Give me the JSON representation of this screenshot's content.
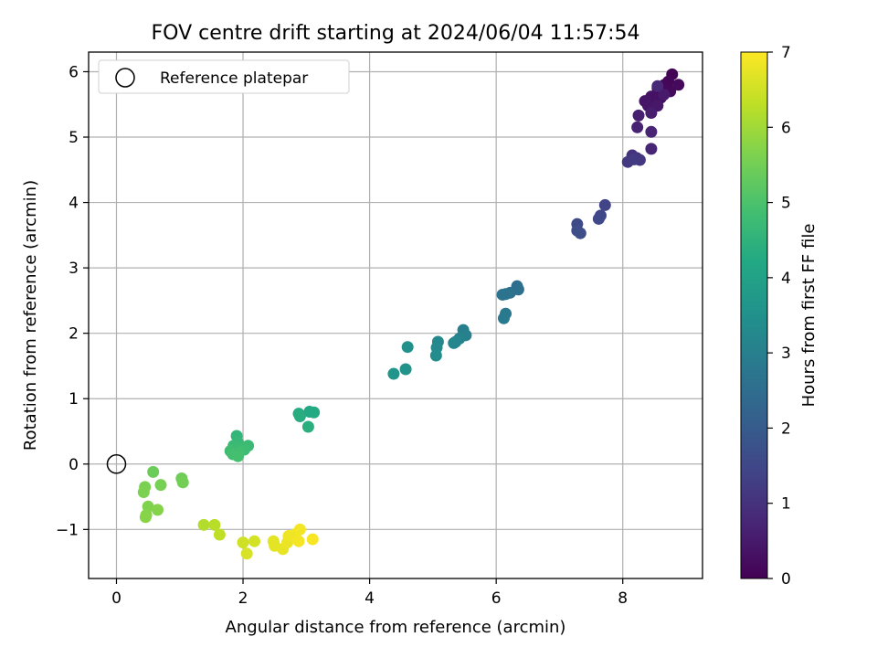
{
  "chart_data": {
    "type": "scatter",
    "title": "FOV centre drift starting at 2024/06/04 11:57:54",
    "xlabel": "Angular distance from reference (arcmin)",
    "ylabel": "Rotation from reference (arcmin)",
    "xlim": [
      -0.44,
      9.26
    ],
    "ylim": [
      -1.75,
      6.3
    ],
    "xticks": [
      0,
      2,
      4,
      6,
      8
    ],
    "xtick_labels": [
      "0",
      "2",
      "4",
      "6",
      "8"
    ],
    "yticks": [
      -1,
      0,
      1,
      2,
      3,
      4,
      5,
      6
    ],
    "ytick_labels": [
      "−1",
      "0",
      "1",
      "2",
      "3",
      "4",
      "5",
      "6"
    ],
    "grid": true,
    "legend": {
      "position": "top-left",
      "entries": [
        "Reference platepar"
      ]
    },
    "reference_point": {
      "label": "Reference platepar",
      "x": 0,
      "y": 0
    },
    "colorbar": {
      "label": "Hours from first FF file",
      "range": [
        0,
        7
      ],
      "ticks": [
        0,
        1,
        2,
        3,
        4,
        5,
        6,
        7
      ],
      "colormap": "viridis"
    },
    "points": [
      [
        8.78,
        5.96,
        0.05
      ],
      [
        8.72,
        5.85,
        0.1
      ],
      [
        8.66,
        5.8,
        0.12
      ],
      [
        8.75,
        5.7,
        0.15
      ],
      [
        8.88,
        5.8,
        0.18
      ],
      [
        8.55,
        5.75,
        0.2
      ],
      [
        8.6,
        5.6,
        0.25
      ],
      [
        8.5,
        5.55,
        0.3
      ],
      [
        8.45,
        5.62,
        0.35
      ],
      [
        8.35,
        5.55,
        0.38
      ],
      [
        8.4,
        5.48,
        0.4
      ],
      [
        8.55,
        5.48,
        0.45
      ],
      [
        8.65,
        5.65,
        0.5
      ],
      [
        8.45,
        5.37,
        0.55
      ],
      [
        8.25,
        5.33,
        0.6
      ],
      [
        8.23,
        5.15,
        0.65
      ],
      [
        8.45,
        5.08,
        0.7
      ],
      [
        8.45,
        4.82,
        0.75
      ],
      [
        8.55,
        5.78,
        0.8
      ],
      [
        8.15,
        4.72,
        1.0
      ],
      [
        8.22,
        4.68,
        1.05
      ],
      [
        8.27,
        4.65,
        1.1
      ],
      [
        8.08,
        4.62,
        1.15
      ],
      [
        8.18,
        4.66,
        1.2
      ],
      [
        7.72,
        3.96,
        1.4
      ],
      [
        7.65,
        3.8,
        1.45
      ],
      [
        7.62,
        3.75,
        1.5
      ],
      [
        7.28,
        3.67,
        1.55
      ],
      [
        7.28,
        3.57,
        1.6
      ],
      [
        7.33,
        3.53,
        1.65
      ],
      [
        6.33,
        2.72,
        2.5
      ],
      [
        6.35,
        2.67,
        2.55
      ],
      [
        6.22,
        2.62,
        2.6
      ],
      [
        6.1,
        2.59,
        2.65
      ],
      [
        6.15,
        2.6,
        2.7
      ],
      [
        6.15,
        2.3,
        2.8
      ],
      [
        6.12,
        2.23,
        2.85
      ],
      [
        5.48,
        2.05,
        3.0
      ],
      [
        5.52,
        1.97,
        3.05
      ],
      [
        5.42,
        1.92,
        3.1
      ],
      [
        5.36,
        1.87,
        3.15
      ],
      [
        5.33,
        1.85,
        3.2
      ],
      [
        5.08,
        1.87,
        3.25
      ],
      [
        5.06,
        1.78,
        3.3
      ],
      [
        5.05,
        1.66,
        3.35
      ],
      [
        4.6,
        1.79,
        3.5
      ],
      [
        4.57,
        1.45,
        3.55
      ],
      [
        4.38,
        1.38,
        3.6
      ],
      [
        3.05,
        0.8,
        4.2
      ],
      [
        3.12,
        0.79,
        4.25
      ],
      [
        2.88,
        0.77,
        4.3
      ],
      [
        2.9,
        0.73,
        4.35
      ],
      [
        3.03,
        0.57,
        4.4
      ],
      [
        1.9,
        0.43,
        4.6
      ],
      [
        1.92,
        0.33,
        4.65
      ],
      [
        1.85,
        0.28,
        4.7
      ],
      [
        2.08,
        0.28,
        4.72
      ],
      [
        1.98,
        0.25,
        4.75
      ],
      [
        1.88,
        0.22,
        4.78
      ],
      [
        2.02,
        0.22,
        4.8
      ],
      [
        1.8,
        0.2,
        4.82
      ],
      [
        1.94,
        0.18,
        4.85
      ],
      [
        1.84,
        0.15,
        4.88
      ],
      [
        1.92,
        0.12,
        4.9
      ],
      [
        0.58,
        -0.12,
        5.4
      ],
      [
        1.03,
        -0.22,
        5.45
      ],
      [
        1.05,
        -0.28,
        5.5
      ],
      [
        0.7,
        -0.32,
        5.55
      ],
      [
        0.45,
        -0.35,
        5.6
      ],
      [
        0.43,
        -0.43,
        5.62
      ],
      [
        0.5,
        -0.65,
        5.65
      ],
      [
        0.65,
        -0.7,
        5.7
      ],
      [
        0.47,
        -0.78,
        5.72
      ],
      [
        0.46,
        -0.81,
        5.75
      ],
      [
        1.38,
        -0.93,
        6.2
      ],
      [
        1.55,
        -0.93,
        6.25
      ],
      [
        1.63,
        -1.08,
        6.3
      ],
      [
        2.0,
        -1.2,
        6.5
      ],
      [
        2.18,
        -1.18,
        6.55
      ],
      [
        2.06,
        -1.37,
        6.6
      ],
      [
        2.48,
        -1.18,
        6.7
      ],
      [
        2.5,
        -1.25,
        6.72
      ],
      [
        2.63,
        -1.3,
        6.75
      ],
      [
        2.7,
        -1.2,
        6.8
      ],
      [
        2.72,
        -1.1,
        6.82
      ],
      [
        2.83,
        -1.07,
        6.85
      ],
      [
        2.9,
        -1.0,
        6.88
      ],
      [
        2.88,
        -1.18,
        6.9
      ],
      [
        3.1,
        -1.15,
        6.95
      ]
    ]
  }
}
